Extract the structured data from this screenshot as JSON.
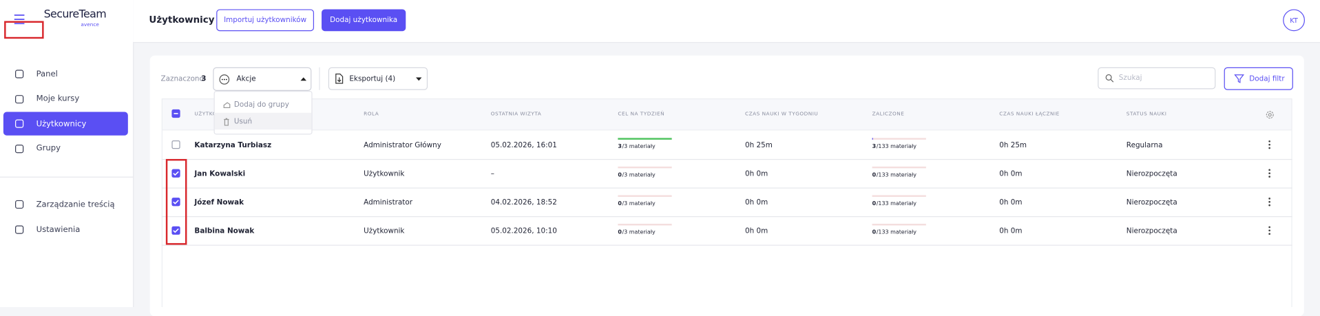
{
  "logo": {
    "name": "SecureTeam",
    "sub": "avence"
  },
  "header": {
    "title": "Użytkownicy",
    "import_button": "Importuj użytkowników",
    "add_button": "Dodaj użytkownika",
    "avatar": "KT"
  },
  "nav": {
    "main": [
      "Panel",
      "Moje kursy",
      "Użytkownicy",
      "Grupy"
    ],
    "secondary": [
      "Zarządzanie treścią",
      "Ustawienia"
    ],
    "active": 2
  },
  "toolbar": {
    "selected_label": "Zaznaczono",
    "selected_count": 3,
    "actions": "Akcje",
    "export": "Eksportuj (4)",
    "search_placeholder": "Szukaj",
    "filter_button": "Dodaj filtr"
  },
  "actions_menu": [
    "Dodaj do grupy",
    "Usuń"
  ],
  "table": {
    "columns": [
      "UŻYTKOWNIK",
      "ROLA",
      "OSTATNIA WIZYTA",
      "CEL NA TYDZIEŃ",
      "CZAS NAUKI W TYGODNIU",
      "ZALICZONE",
      "CZAS NAUKI ŁĄCZNIE",
      "STATUS NAUKI"
    ],
    "rows": [
      {
        "checked": false,
        "name": "Katarzyna Turbiasz",
        "role": "Administrator Główny",
        "last_visit": "05.02.2026, 16:01",
        "goal": {
          "done": 3,
          "total": 3,
          "label": "/3 materiały"
        },
        "week_time": "0h 25m",
        "passed": {
          "done": 3,
          "total": 133,
          "label": "/133 materiały"
        },
        "total_time": "0h 25m",
        "status": "Regularna"
      },
      {
        "checked": true,
        "name": "Jan Kowalski",
        "role": "Użytkownik",
        "last_visit": "–",
        "goal": {
          "done": 0,
          "total": 3,
          "label": "/3 materiały"
        },
        "week_time": "0h 0m",
        "passed": {
          "done": 0,
          "total": 133,
          "label": "/133 materiały"
        },
        "total_time": "0h 0m",
        "status": "Nierozpoczęta"
      },
      {
        "checked": true,
        "name": "Józef Nowak",
        "role": "Administrator",
        "last_visit": "04.02.2026, 18:52",
        "goal": {
          "done": 0,
          "total": 3,
          "label": "/3 materiały"
        },
        "week_time": "0h 0m",
        "passed": {
          "done": 0,
          "total": 133,
          "label": "/133 materiały"
        },
        "total_time": "0h 0m",
        "status": "Nierozpoczęta"
      },
      {
        "checked": true,
        "name": "Balbina Nowak",
        "role": "Użytkownik",
        "last_visit": "05.02.2026, 10:10",
        "goal": {
          "done": 0,
          "total": 3,
          "label": "/3 materiały"
        },
        "week_time": "0h 0m",
        "passed": {
          "done": 0,
          "total": 133,
          "label": "/133 materiały"
        },
        "total_time": "0h 0m",
        "status": "Nierozpoczęta"
      }
    ]
  }
}
